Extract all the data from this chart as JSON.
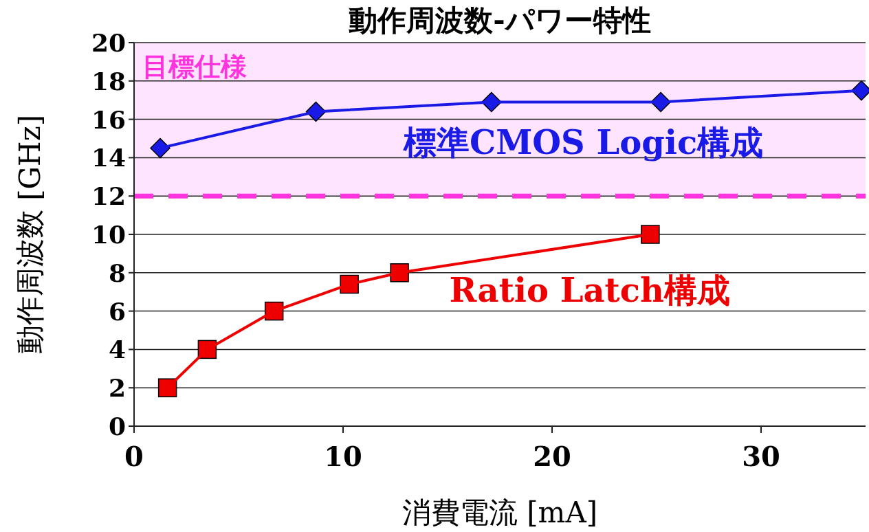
{
  "chart_data": {
    "type": "line",
    "title": "動作周波数-パワー特性",
    "xlabel": "消費電流 [mA]",
    "ylabel": "動作周波数 [GHz]",
    "xlim": [
      0,
      35
    ],
    "xticks": [
      0,
      10,
      20,
      30
    ],
    "ylim": [
      0,
      20
    ],
    "yticks": [
      0,
      2,
      4,
      6,
      8,
      10,
      12,
      14,
      16,
      18,
      20
    ],
    "grid": "y",
    "legend": false,
    "series": [
      {
        "name": "標準CMOS Logic構成",
        "color": "#1a1ae6",
        "marker": "diamond",
        "x": [
          1.25,
          8.7,
          17.1,
          25.2,
          34.8
        ],
        "values": [
          14.5,
          16.4,
          16.9,
          16.9,
          17.5
        ]
      },
      {
        "name": "Ratio Latch構成",
        "color": "#ee0000",
        "marker": "square",
        "x": [
          1.6,
          3.5,
          6.7,
          10.3,
          12.7,
          24.7
        ],
        "values": [
          2,
          4,
          6,
          7.4,
          8,
          10
        ]
      }
    ],
    "ref_lines": [
      {
        "axis": "y",
        "value": 12,
        "color": "#ff33dd",
        "line_style": "dashed"
      }
    ],
    "bands": [
      {
        "axis": "y",
        "from": 12,
        "to": 20,
        "label": "目標仕様",
        "color": "#ffe4ff"
      }
    ]
  }
}
